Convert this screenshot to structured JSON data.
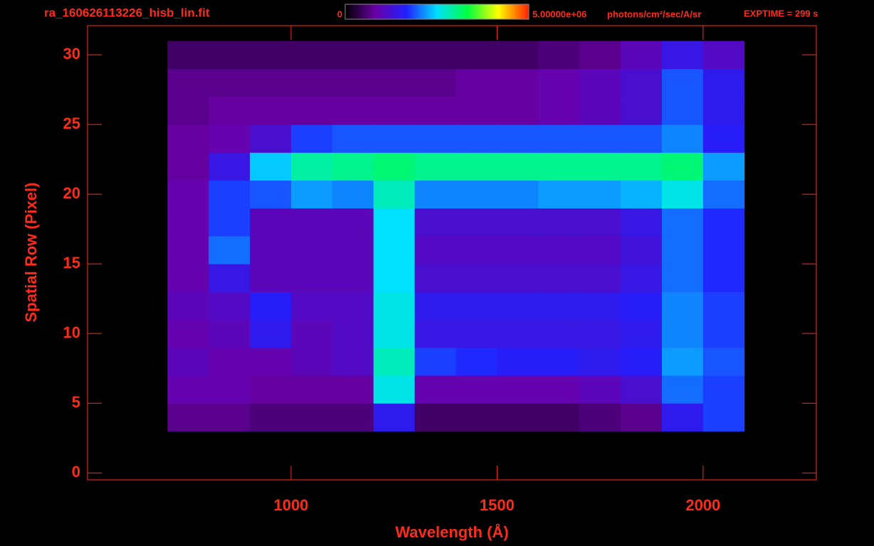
{
  "chart_data": {
    "type": "heatmap",
    "title": "ra_160626113226_hisb_lin.fit",
    "exposure": "EXPTIME = 299 s",
    "x_label": "Wavelength (Å)",
    "y_label": "Spatial Row (Pixel)",
    "xlim": [
      506,
      2275
    ],
    "ylim": [
      -0.5,
      32.1
    ],
    "xticks": [
      1000,
      1500,
      2000
    ],
    "yticks": [
      0,
      5,
      10,
      15,
      20,
      25,
      30
    ],
    "x_edges": [
      700,
      800,
      900,
      1000,
      1100,
      1200,
      1300,
      1400,
      1500,
      1600,
      1700,
      1800,
      1900,
      2000,
      2100
    ],
    "y_edges": [
      3,
      5,
      7,
      9,
      11,
      13,
      15,
      17,
      19,
      21,
      23,
      25,
      27,
      29,
      31
    ],
    "colorbar_lim": [
      0,
      5000000
    ],
    "colorbar_ticks": [
      0,
      {
        "value": 5000000,
        "label": "5.00000e+06"
      }
    ],
    "colorbar_units": "photons/cm²/sec/A/sr",
    "colormap": [
      "#000000",
      "#6a00a8",
      "#2020ff",
      "#00e0ff",
      "#00ff40",
      "#ffff00",
      "#ff2000"
    ],
    "axis_color": "#ff2a1a",
    "z": [
      [
        700000.0,
        700000.0,
        600000.0,
        600000.0,
        600000.0,
        1500000.0,
        500000.0,
        500000.0,
        500000.0,
        500000.0,
        600000.0,
        700000.0,
        1500000.0,
        1800000.0
      ],
      [
        900000.0,
        900000.0,
        800000.0,
        800000.0,
        800000.0,
        2600000.0,
        900000.0,
        900000.0,
        900000.0,
        900000.0,
        1000000.0,
        1200000.0,
        2000000.0,
        1800000.0
      ],
      [
        1000000.0,
        900000.0,
        900000.0,
        1000000.0,
        1100000.0,
        2800000.0,
        1800000.0,
        1700000.0,
        1600000.0,
        1600000.0,
        1500000.0,
        1600000.0,
        2200000.0,
        1900000.0
      ],
      [
        900000.0,
        1000000.0,
        1500000.0,
        1000000.0,
        1100000.0,
        2600000.0,
        1400000.0,
        1400000.0,
        1400000.0,
        1400000.0,
        1400000.0,
        1500000.0,
        2100000.0,
        1800000.0
      ],
      [
        1000000.0,
        1100000.0,
        1600000.0,
        1100000.0,
        1100000.0,
        2600000.0,
        1500000.0,
        1500000.0,
        1500000.0,
        1500000.0,
        1500000.0,
        1600000.0,
        2100000.0,
        1800000.0
      ],
      [
        900000.0,
        1400000.0,
        1000000.0,
        1000000.0,
        1000000.0,
        2500000.0,
        1200000.0,
        1200000.0,
        1200000.0,
        1200000.0,
        1200000.0,
        1400000.0,
        2000000.0,
        1700000.0
      ],
      [
        900000.0,
        2000000.0,
        1000000.0,
        1000000.0,
        1000000.0,
        2500000.0,
        1100000.0,
        1100000.0,
        1100000.0,
        1100000.0,
        1100000.0,
        1300000.0,
        2000000.0,
        1700000.0
      ],
      [
        900000.0,
        1800000.0,
        1000000.0,
        1000000.0,
        1000000.0,
        2500000.0,
        1200000.0,
        1200000.0,
        1200000.0,
        1200000.0,
        1200000.0,
        1400000.0,
        2000000.0,
        1700000.0
      ],
      [
        900000.0,
        1800000.0,
        1900000.0,
        2200000.0,
        2100000.0,
        2800000.0,
        2100000.0,
        2100000.0,
        2100000.0,
        2200000.0,
        2200000.0,
        2300000.0,
        2600000.0,
        2000000.0
      ],
      [
        800000.0,
        1400000.0,
        2400000.0,
        2900000.0,
        3000000.0,
        3100000.0,
        3000000.0,
        3000000.0,
        3000000.0,
        3000000.0,
        3000000.0,
        3000000.0,
        3100000.0,
        2200000.0
      ],
      [
        800000.0,
        900000.0,
        1200000.0,
        1800000.0,
        1900000.0,
        1900000.0,
        1900000.0,
        1900000.0,
        1900000.0,
        1900000.0,
        1900000.0,
        1900000.0,
        2100000.0,
        1600000.0
      ],
      [
        700000.0,
        800000.0,
        800000.0,
        800000.0,
        800000.0,
        800000.0,
        800000.0,
        800000.0,
        800000.0,
        900000.0,
        1000000.0,
        1200000.0,
        1900000.0,
        1500000.0
      ],
      [
        700000.0,
        700000.0,
        700000.0,
        700000.0,
        700000.0,
        700000.0,
        700000.0,
        800000.0,
        800000.0,
        900000.0,
        1000000.0,
        1200000.0,
        1900000.0,
        1500000.0
      ],
      [
        500000.0,
        500000.0,
        500000.0,
        500000.0,
        500000.0,
        500000.0,
        500000.0,
        500000.0,
        500000.0,
        600000.0,
        700000.0,
        1000000.0,
        1400000.0,
        1100000.0
      ]
    ]
  }
}
